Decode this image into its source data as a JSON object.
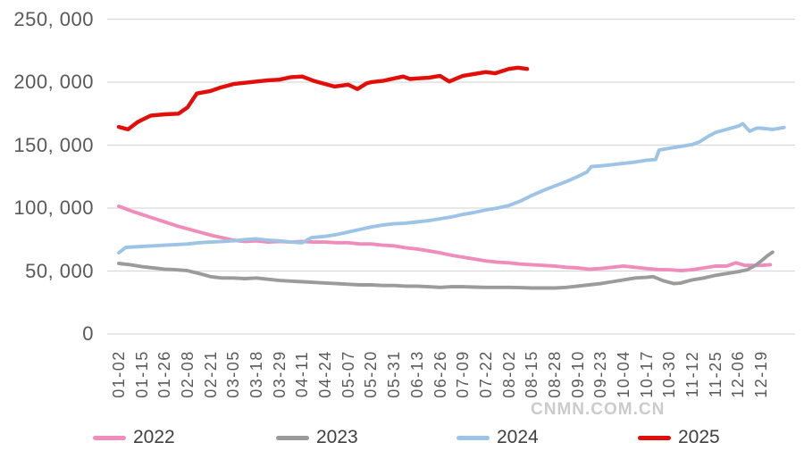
{
  "chart_data": {
    "type": "line",
    "title": "",
    "grid": "horizontal",
    "legend_position": "bottom",
    "ylim": [
      0,
      250000
    ],
    "y_ticks": [
      0,
      50000,
      100000,
      150000,
      200000,
      250000
    ],
    "y_tick_labels": [
      "0",
      "50, 000",
      "100, 000",
      "150, 000",
      "200, 000",
      "250, 000"
    ],
    "x_tick_labels": [
      "01-02",
      "01-15",
      "01-26",
      "02-08",
      "02-21",
      "03-05",
      "03-18",
      "03-29",
      "04-11",
      "04-24",
      "05-07",
      "05-20",
      "05-31",
      "06-13",
      "06-26",
      "07-09",
      "07-22",
      "08-02",
      "08-15",
      "08-28",
      "09-10",
      "09-23",
      "10-04",
      "10-17",
      "10-30",
      "11-12",
      "11-25",
      "12-06",
      "12-19"
    ],
    "x_unit": "tick index along date axis (fractional values fall between labeled ticks)",
    "series": [
      {
        "name": "2022",
        "color": "#F08CBA",
        "points": [
          [
            0,
            101500
          ],
          [
            0.5,
            98000
          ],
          [
            1,
            95000
          ],
          [
            1.5,
            92000
          ],
          [
            2,
            89000
          ],
          [
            2.5,
            86000
          ],
          [
            3,
            83500
          ],
          [
            3.5,
            81000
          ],
          [
            4,
            78500
          ],
          [
            4.5,
            76500
          ],
          [
            5,
            74500
          ],
          [
            5.5,
            73500
          ],
          [
            6,
            74000
          ],
          [
            6.5,
            73000
          ],
          [
            7,
            73500
          ],
          [
            7.5,
            73000
          ],
          [
            8,
            73500
          ],
          [
            8.5,
            73000
          ],
          [
            9,
            73000
          ],
          [
            9.5,
            72500
          ],
          [
            10,
            72500
          ],
          [
            10.5,
            71500
          ],
          [
            11,
            71500
          ],
          [
            11.5,
            70500
          ],
          [
            12,
            70000
          ],
          [
            12.5,
            68500
          ],
          [
            13,
            67500
          ],
          [
            13.5,
            66000
          ],
          [
            14,
            64500
          ],
          [
            14.5,
            62500
          ],
          [
            15,
            61000
          ],
          [
            15.5,
            59500
          ],
          [
            16,
            58000
          ],
          [
            16.5,
            57000
          ],
          [
            17,
            56500
          ],
          [
            17.5,
            55500
          ],
          [
            18,
            55000
          ],
          [
            18.5,
            54500
          ],
          [
            19,
            54000
          ],
          [
            19.5,
            53000
          ],
          [
            20,
            52500
          ],
          [
            20.5,
            51500
          ],
          [
            21,
            52000
          ],
          [
            21.5,
            53000
          ],
          [
            22,
            54000
          ],
          [
            22.5,
            53000
          ],
          [
            23,
            52000
          ],
          [
            23.5,
            51200
          ],
          [
            24,
            51000
          ],
          [
            24.5,
            50300
          ],
          [
            25,
            51000
          ],
          [
            25.5,
            52500
          ],
          [
            26,
            53900
          ],
          [
            26.5,
            54000
          ],
          [
            26.9,
            56500
          ],
          [
            27.3,
            54500
          ],
          [
            28,
            54500
          ],
          [
            28.4,
            55000
          ]
        ]
      },
      {
        "name": "2023",
        "color": "#9B9B9B",
        "points": [
          [
            0,
            56000
          ],
          [
            0.5,
            55000
          ],
          [
            1,
            53500
          ],
          [
            1.5,
            52500
          ],
          [
            2,
            51500
          ],
          [
            2.5,
            51000
          ],
          [
            3,
            50300
          ],
          [
            3.5,
            48000
          ],
          [
            4,
            45500
          ],
          [
            4.5,
            44500
          ],
          [
            5,
            44500
          ],
          [
            5.5,
            44000
          ],
          [
            6,
            44500
          ],
          [
            6.5,
            43500
          ],
          [
            7,
            42500
          ],
          [
            7.5,
            42000
          ],
          [
            8,
            41500
          ],
          [
            8.5,
            41000
          ],
          [
            9,
            40500
          ],
          [
            9.5,
            40000
          ],
          [
            10,
            39500
          ],
          [
            10.5,
            39000
          ],
          [
            11,
            39000
          ],
          [
            11.5,
            38500
          ],
          [
            12,
            38500
          ],
          [
            12.5,
            38000
          ],
          [
            13,
            38000
          ],
          [
            13.5,
            37500
          ],
          [
            14,
            37000
          ],
          [
            14.5,
            37500
          ],
          [
            15,
            37500
          ],
          [
            15.5,
            37200
          ],
          [
            16,
            37000
          ],
          [
            16.5,
            37000
          ],
          [
            17,
            37000
          ],
          [
            17.5,
            36800
          ],
          [
            18,
            36500
          ],
          [
            18.5,
            36500
          ],
          [
            19,
            36500
          ],
          [
            19.5,
            37000
          ],
          [
            20,
            38000
          ],
          [
            20.5,
            39000
          ],
          [
            21,
            40000
          ],
          [
            21.5,
            41500
          ],
          [
            22,
            43000
          ],
          [
            22.5,
            44500
          ],
          [
            23,
            45000
          ],
          [
            23.3,
            45500
          ],
          [
            23.7,
            42500
          ],
          [
            24.2,
            40000
          ],
          [
            24.5,
            40500
          ],
          [
            25,
            43000
          ],
          [
            25.5,
            44500
          ],
          [
            26,
            46500
          ],
          [
            26.5,
            48000
          ],
          [
            27,
            49500
          ],
          [
            27.4,
            51000
          ],
          [
            27.8,
            55000
          ],
          [
            28.1,
            59500
          ],
          [
            28.3,
            62500
          ],
          [
            28.5,
            65000
          ]
        ]
      },
      {
        "name": "2024",
        "color": "#9DC3E6",
        "points": [
          [
            0,
            64500
          ],
          [
            0.3,
            68800
          ],
          [
            1,
            69500
          ],
          [
            1.5,
            70000
          ],
          [
            2,
            70500
          ],
          [
            2.5,
            71000
          ],
          [
            3,
            71500
          ],
          [
            3.5,
            72500
          ],
          [
            4,
            73000
          ],
          [
            4.5,
            73500
          ],
          [
            5,
            74000
          ],
          [
            5.5,
            75000
          ],
          [
            6,
            75500
          ],
          [
            6.5,
            74500
          ],
          [
            7,
            74000
          ],
          [
            7.5,
            73000
          ],
          [
            8,
            72500
          ],
          [
            8.4,
            76500
          ],
          [
            9,
            77500
          ],
          [
            9.5,
            79000
          ],
          [
            10,
            81000
          ],
          [
            10.5,
            83000
          ],
          [
            11,
            85000
          ],
          [
            11.5,
            86500
          ],
          [
            12,
            87500
          ],
          [
            12.5,
            88000
          ],
          [
            13,
            89000
          ],
          [
            13.5,
            90000
          ],
          [
            14,
            91500
          ],
          [
            14.5,
            93000
          ],
          [
            15,
            95000
          ],
          [
            15.5,
            96500
          ],
          [
            16,
            98500
          ],
          [
            16.5,
            100000
          ],
          [
            17,
            102000
          ],
          [
            17.5,
            105500
          ],
          [
            18,
            110000
          ],
          [
            18.5,
            114000
          ],
          [
            19,
            117500
          ],
          [
            19.5,
            121000
          ],
          [
            20,
            125000
          ],
          [
            20.4,
            128500
          ],
          [
            20.6,
            133000
          ],
          [
            21,
            133500
          ],
          [
            21.5,
            134500
          ],
          [
            22,
            135500
          ],
          [
            22.5,
            136500
          ],
          [
            23,
            138000
          ],
          [
            23.4,
            138500
          ],
          [
            23.55,
            146000
          ],
          [
            24,
            147500
          ],
          [
            24.5,
            149000
          ],
          [
            25,
            150500
          ],
          [
            25.3,
            152500
          ],
          [
            25.7,
            157000
          ],
          [
            26,
            160000
          ],
          [
            26.5,
            162500
          ],
          [
            27,
            165000
          ],
          [
            27.2,
            167000
          ],
          [
            27.5,
            161000
          ],
          [
            27.8,
            163500
          ],
          [
            28,
            163500
          ],
          [
            28.5,
            162500
          ],
          [
            29,
            164000
          ]
        ]
      },
      {
        "name": "2025",
        "color": "#E10E09",
        "points": [
          [
            0,
            164500
          ],
          [
            0.4,
            162500
          ],
          [
            0.8,
            168000
          ],
          [
            1,
            170000
          ],
          [
            1.4,
            173500
          ],
          [
            2,
            174500
          ],
          [
            2.6,
            175000
          ],
          [
            3,
            180000
          ],
          [
            3.4,
            191000
          ],
          [
            4,
            193000
          ],
          [
            4.4,
            195500
          ],
          [
            5,
            198500
          ],
          [
            5.5,
            199500
          ],
          [
            6,
            200500
          ],
          [
            6.5,
            201500
          ],
          [
            7,
            202000
          ],
          [
            7.5,
            204000
          ],
          [
            8,
            204500
          ],
          [
            8.5,
            201000
          ],
          [
            9,
            198500
          ],
          [
            9.4,
            196500
          ],
          [
            10,
            198000
          ],
          [
            10.4,
            194500
          ],
          [
            10.8,
            199000
          ],
          [
            11,
            200000
          ],
          [
            11.5,
            201000
          ],
          [
            12,
            203000
          ],
          [
            12.4,
            204500
          ],
          [
            12.7,
            202500
          ],
          [
            13,
            203000
          ],
          [
            13.5,
            203500
          ],
          [
            14,
            205000
          ],
          [
            14.4,
            200500
          ],
          [
            15,
            205000
          ],
          [
            15.5,
            206500
          ],
          [
            16,
            208000
          ],
          [
            16.4,
            207000
          ],
          [
            17,
            210500
          ],
          [
            17.4,
            211500
          ],
          [
            17.8,
            210500
          ]
        ]
      }
    ]
  },
  "legend": {
    "items": [
      {
        "label": "2022",
        "color": "#F08CBA"
      },
      {
        "label": "2023",
        "color": "#9B9B9B"
      },
      {
        "label": "2024",
        "color": "#9DC3E6"
      },
      {
        "label": "2025",
        "color": "#E10E09"
      }
    ]
  },
  "watermark": {
    "text": "CNMN.COM.CN"
  },
  "style": {
    "gridline_color": "#D9D9D9",
    "axis_text_color": "#595959",
    "legend_text_color": "#3F3F3F",
    "background_color": "#FFFFFF"
  }
}
